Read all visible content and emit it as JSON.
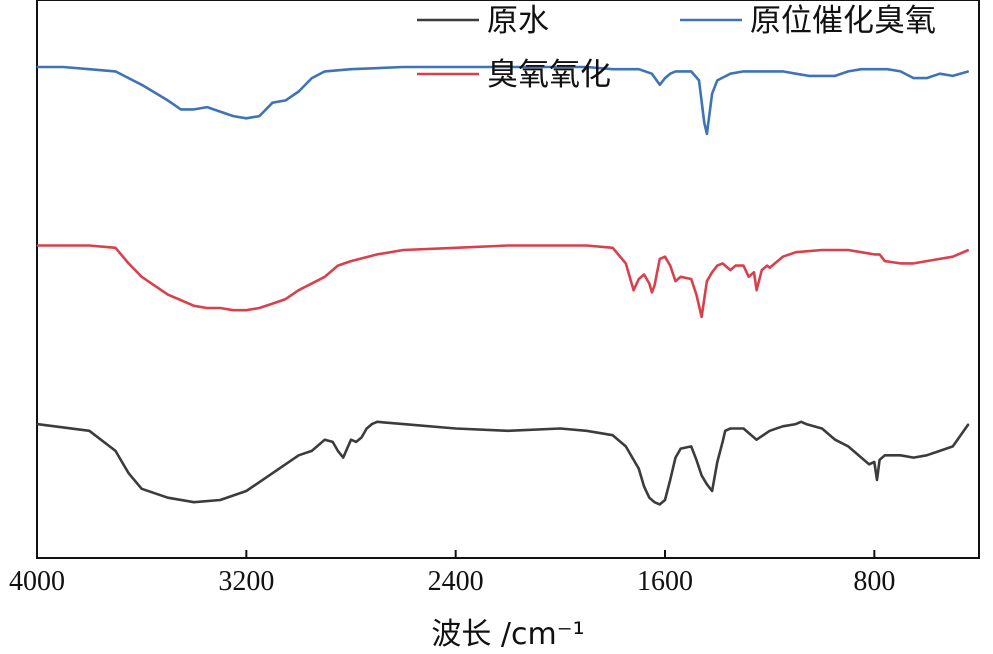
{
  "chart_data": {
    "type": "line",
    "title": "",
    "xlabel": "波长  /cm⁻¹",
    "ylabel": "",
    "xlim": [
      4000,
      400
    ],
    "x_reversed": true,
    "x_ticks": [
      "4000",
      "3200",
      "2400",
      "1600",
      "800"
    ],
    "grid": false,
    "y_ticks_shown": false,
    "legend_position": "top",
    "series": [
      {
        "name": "原水",
        "color": "#3c3c3c",
        "x": [
          4000,
          3800,
          3700,
          3650,
          3600,
          3500,
          3400,
          3300,
          3200,
          3100,
          3000,
          2950,
          2900,
          2870,
          2850,
          2830,
          2800,
          2780,
          2760,
          2740,
          2720,
          2700,
          2600,
          2400,
          2200,
          2000,
          1900,
          1800,
          1750,
          1700,
          1680,
          1660,
          1640,
          1620,
          1600,
          1580,
          1560,
          1540,
          1500,
          1480,
          1460,
          1440,
          1420,
          1400,
          1380,
          1370,
          1350,
          1300,
          1250,
          1200,
          1150,
          1100,
          1080,
          1060,
          1000,
          950,
          900,
          850,
          820,
          800,
          790,
          780,
          760,
          700,
          650,
          600,
          550,
          500,
          440
        ],
        "y": [
          0.6,
          0.57,
          0.48,
          0.38,
          0.31,
          0.27,
          0.25,
          0.26,
          0.3,
          0.38,
          0.46,
          0.48,
          0.53,
          0.52,
          0.48,
          0.45,
          0.53,
          0.52,
          0.54,
          0.58,
          0.6,
          0.61,
          0.6,
          0.58,
          0.57,
          0.58,
          0.57,
          0.55,
          0.5,
          0.4,
          0.32,
          0.27,
          0.25,
          0.24,
          0.26,
          0.35,
          0.45,
          0.49,
          0.5,
          0.44,
          0.37,
          0.33,
          0.3,
          0.43,
          0.52,
          0.57,
          0.58,
          0.58,
          0.53,
          0.57,
          0.59,
          0.6,
          0.61,
          0.6,
          0.58,
          0.53,
          0.5,
          0.45,
          0.42,
          0.43,
          0.35,
          0.44,
          0.46,
          0.46,
          0.45,
          0.46,
          0.48,
          0.5,
          0.6
        ]
      },
      {
        "name": "臭氧氧化",
        "color": "#d8414b",
        "x": [
          4000,
          3800,
          3700,
          3650,
          3600,
          3500,
          3400,
          3350,
          3300,
          3250,
          3200,
          3150,
          3100,
          3050,
          3000,
          2900,
          2850,
          2800,
          2700,
          2600,
          2400,
          2200,
          2000,
          1900,
          1800,
          1750,
          1720,
          1700,
          1680,
          1660,
          1650,
          1640,
          1630,
          1620,
          1600,
          1580,
          1560,
          1540,
          1500,
          1480,
          1460,
          1440,
          1420,
          1400,
          1380,
          1350,
          1330,
          1300,
          1280,
          1260,
          1250,
          1230,
          1210,
          1200,
          1150,
          1100,
          1000,
          950,
          900,
          850,
          800,
          780,
          760,
          700,
          650,
          600,
          550,
          500,
          440
        ],
        "y": [
          1.4,
          1.4,
          1.39,
          1.32,
          1.26,
          1.18,
          1.13,
          1.12,
          1.12,
          1.11,
          1.11,
          1.12,
          1.14,
          1.16,
          1.2,
          1.26,
          1.31,
          1.33,
          1.36,
          1.38,
          1.39,
          1.4,
          1.4,
          1.4,
          1.39,
          1.32,
          1.2,
          1.25,
          1.27,
          1.23,
          1.19,
          1.22,
          1.28,
          1.34,
          1.35,
          1.31,
          1.24,
          1.26,
          1.25,
          1.18,
          1.08,
          1.24,
          1.28,
          1.31,
          1.32,
          1.29,
          1.31,
          1.31,
          1.26,
          1.28,
          1.2,
          1.29,
          1.31,
          1.3,
          1.35,
          1.37,
          1.38,
          1.38,
          1.38,
          1.37,
          1.36,
          1.36,
          1.33,
          1.32,
          1.32,
          1.33,
          1.34,
          1.35,
          1.38
        ]
      },
      {
        "name": "原位催化臭氧",
        "color": "#3f73b5",
        "x": [
          4000,
          3900,
          3800,
          3700,
          3600,
          3500,
          3450,
          3400,
          3350,
          3300,
          3250,
          3200,
          3150,
          3100,
          3050,
          3000,
          2950,
          2900,
          2800,
          2600,
          2400,
          2200,
          2000,
          1900,
          1800,
          1700,
          1650,
          1620,
          1600,
          1580,
          1560,
          1540,
          1500,
          1470,
          1450,
          1440,
          1420,
          1400,
          1350,
          1300,
          1200,
          1150,
          1100,
          1050,
          1000,
          950,
          900,
          850,
          800,
          750,
          700,
          650,
          600,
          550,
          500,
          440
        ],
        "y": [
          2.2,
          2.2,
          2.19,
          2.18,
          2.12,
          2.05,
          2.01,
          2.01,
          2.02,
          2.0,
          1.98,
          1.97,
          1.98,
          2.04,
          2.05,
          2.09,
          2.15,
          2.18,
          2.19,
          2.2,
          2.2,
          2.2,
          2.2,
          2.2,
          2.19,
          2.19,
          2.17,
          2.12,
          2.15,
          2.17,
          2.18,
          2.18,
          2.18,
          2.14,
          1.95,
          1.9,
          2.08,
          2.14,
          2.17,
          2.18,
          2.18,
          2.18,
          2.17,
          2.16,
          2.16,
          2.16,
          2.18,
          2.19,
          2.19,
          2.19,
          2.18,
          2.15,
          2.15,
          2.17,
          2.16,
          2.18
        ]
      }
    ]
  }
}
